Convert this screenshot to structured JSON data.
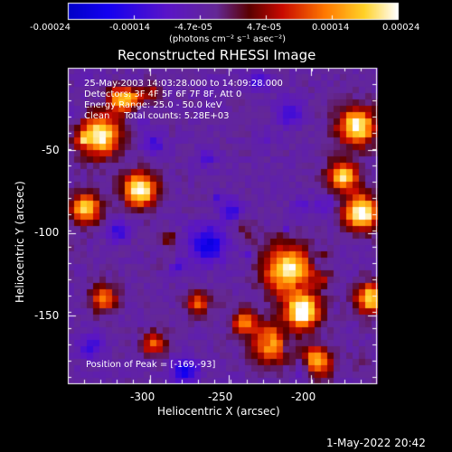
{
  "colorbar": {
    "tick_labels": [
      "-0.00024",
      "-0.00014",
      "-4.7e-05",
      "4.7e-05",
      "0.00014",
      "0.00024"
    ],
    "units": "(photons cm⁻² s⁻¹ asec⁻²)"
  },
  "title": "Reconstructed RHESSI Image",
  "info": {
    "time_range": "25-May-2003 14:03:28.000 to 14:09:28.000",
    "detectors": "Detectors: 3F 4F 5F 6F 7F 8F, Att 0",
    "energy": "Energy Range: 25.0 - 50.0 keV",
    "method": "Clean     Total counts: 5.28E+03",
    "peak": "Position of Peak = [-169,-93]"
  },
  "axes": {
    "x_label": "Heliocentric X (arcsec)",
    "y_label": "Heliocentric Y (arcsec)",
    "x_ticks": [
      "-300",
      "-250",
      "-200"
    ],
    "y_ticks": [
      "-50",
      "-100",
      "-150"
    ]
  },
  "footer": {
    "timestamp": "1-May-2022 20:42"
  },
  "chart_data": {
    "type": "heatmap",
    "title": "Reconstructed RHESSI Image",
    "xlabel": "Heliocentric X (arcsec)",
    "ylabel": "Heliocentric Y (arcsec)",
    "xlim": [
      -348,
      -186
    ],
    "ylim": [
      -193,
      -31
    ],
    "colormap": "blue-purple-red-yellow-white",
    "color_range": [
      -0.00024,
      0.00024
    ],
    "peak_position": [
      -169,
      -93
    ]
  }
}
